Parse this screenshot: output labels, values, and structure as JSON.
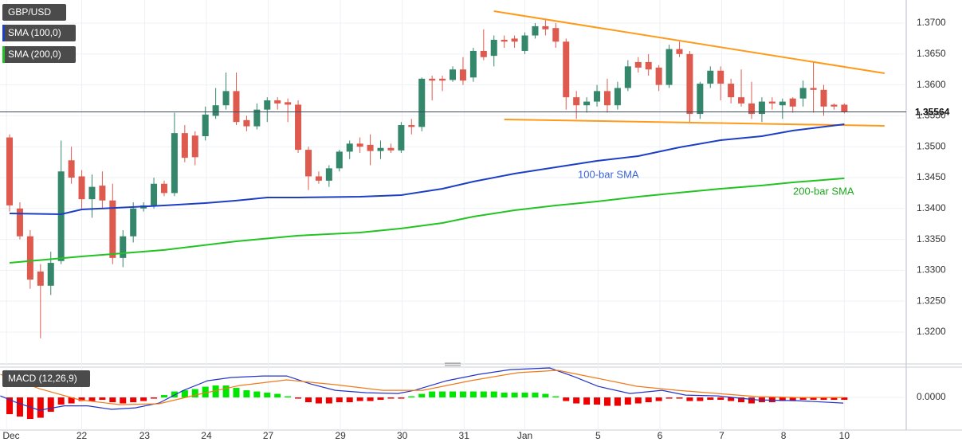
{
  "chart_data": [
    {
      "type": "candlestick",
      "title": "GBP/USD",
      "up_color": "#34876b",
      "down_color": "#df5a4e",
      "open": [
        1.3515,
        1.34,
        1.3355,
        1.3298,
        1.3275,
        1.3315,
        1.3478,
        1.3452,
        1.3415,
        1.3437,
        1.3413,
        1.332,
        1.3355,
        1.34,
        1.3405,
        1.344,
        1.3425,
        1.3522,
        1.3518,
        1.3517,
        1.355,
        1.3567,
        1.359,
        1.3543,
        1.3533,
        1.356,
        1.3575,
        1.3572,
        1.3568,
        1.3495,
        1.3452,
        1.3445,
        1.3465,
        1.3492,
        1.3505,
        1.3503,
        1.3493,
        1.3498,
        1.3494,
        1.3535,
        1.3532,
        1.361,
        1.361,
        1.3608,
        1.3625,
        1.3612,
        1.3655,
        1.3647,
        1.3673,
        1.3675,
        1.3655,
        1.368,
        1.3695,
        1.3692,
        1.367,
        1.358,
        1.3567,
        1.3573,
        1.359,
        1.3567,
        1.3595,
        1.3637,
        1.3637,
        1.3628,
        1.36,
        1.3658,
        1.365,
        1.3553,
        1.3602,
        1.3623,
        1.3602,
        1.358,
        1.357,
        1.3553,
        1.3573,
        1.3567,
        1.3578,
        1.3578,
        1.3595,
        1.3592,
        1.3568,
        1.3568
      ],
      "high": [
        1.352,
        1.341,
        1.3365,
        1.331,
        1.333,
        1.351,
        1.35,
        1.3462,
        1.3455,
        1.346,
        1.344,
        1.3365,
        1.341,
        1.341,
        1.345,
        1.3445,
        1.3555,
        1.3535,
        1.3525,
        1.3565,
        1.3595,
        1.362,
        1.362,
        1.355,
        1.357,
        1.358,
        1.358,
        1.3578,
        1.3575,
        1.35,
        1.346,
        1.347,
        1.3495,
        1.351,
        1.3515,
        1.352,
        1.351,
        1.3505,
        1.354,
        1.3545,
        1.3612,
        1.3615,
        1.3615,
        1.363,
        1.3645,
        1.366,
        1.369,
        1.368,
        1.368,
        1.368,
        1.3685,
        1.37,
        1.3705,
        1.37,
        1.3675,
        1.359,
        1.358,
        1.36,
        1.361,
        1.3605,
        1.364,
        1.3645,
        1.365,
        1.3632,
        1.3665,
        1.367,
        1.3655,
        1.3605,
        1.363,
        1.363,
        1.361,
        1.3625,
        1.3605,
        1.358,
        1.358,
        1.3578,
        1.358,
        1.3607,
        1.3637,
        1.36,
        1.357,
        1.357
      ],
      "low": [
        1.3395,
        1.335,
        1.327,
        1.319,
        1.326,
        1.331,
        1.344,
        1.34,
        1.3385,
        1.34,
        1.331,
        1.3305,
        1.3345,
        1.3395,
        1.34,
        1.342,
        1.342,
        1.3475,
        1.347,
        1.351,
        1.3545,
        1.356,
        1.3535,
        1.3525,
        1.3528,
        1.354,
        1.356,
        1.354,
        1.349,
        1.343,
        1.344,
        1.3435,
        1.346,
        1.348,
        1.349,
        1.347,
        1.348,
        1.349,
        1.349,
        1.352,
        1.3525,
        1.3575,
        1.359,
        1.3605,
        1.36,
        1.3605,
        1.364,
        1.363,
        1.366,
        1.366,
        1.365,
        1.3675,
        1.368,
        1.366,
        1.356,
        1.3545,
        1.3555,
        1.3565,
        1.3555,
        1.356,
        1.359,
        1.362,
        1.3615,
        1.359,
        1.3595,
        1.3645,
        1.354,
        1.3545,
        1.3595,
        1.3575,
        1.357,
        1.3565,
        1.3545,
        1.354,
        1.356,
        1.3545,
        1.3555,
        1.3565,
        1.3555,
        1.355,
        1.356,
        1.3554
      ],
      "close": [
        1.3405,
        1.3355,
        1.3285,
        1.3275,
        1.3312,
        1.346,
        1.345,
        1.3415,
        1.3435,
        1.3413,
        1.332,
        1.3355,
        1.34,
        1.3405,
        1.344,
        1.3425,
        1.3522,
        1.3482,
        1.3483,
        1.3552,
        1.3567,
        1.359,
        1.354,
        1.3533,
        1.356,
        1.3575,
        1.357,
        1.3568,
        1.3495,
        1.3452,
        1.3445,
        1.3465,
        1.3492,
        1.3505,
        1.35,
        1.3493,
        1.3498,
        1.3494,
        1.3535,
        1.3532,
        1.361,
        1.3607,
        1.3607,
        1.3625,
        1.3607,
        1.3655,
        1.3645,
        1.3673,
        1.367,
        1.367,
        1.368,
        1.3695,
        1.369,
        1.367,
        1.358,
        1.3567,
        1.3573,
        1.359,
        1.3567,
        1.3595,
        1.363,
        1.3628,
        1.3625,
        1.36,
        1.3658,
        1.365,
        1.3553,
        1.3602,
        1.3623,
        1.3602,
        1.358,
        1.357,
        1.3553,
        1.3573,
        1.357,
        1.3573,
        1.3565,
        1.3595,
        1.3592,
        1.3565,
        1.3565,
        1.3556
      ],
      "series": [
        {
          "name": "SMA (100,0)",
          "color": "#1d3fc4",
          "x": [
            0,
            5,
            7,
            15,
            19,
            22,
            25,
            28,
            34,
            38,
            42,
            45,
            49,
            53,
            57,
            61,
            65,
            69,
            73,
            76,
            81
          ],
          "values": [
            1.3392,
            1.33907,
            1.33985,
            1.34049,
            1.34088,
            1.34127,
            1.34178,
            1.34178,
            1.34191,
            1.34217,
            1.3432,
            1.34436,
            1.34565,
            1.34668,
            1.34771,
            1.34848,
            1.3499,
            1.35106,
            1.3517,
            1.35261,
            1.35364
          ]
        },
        {
          "name": "SMA (200,0)",
          "color": "#22c322",
          "x": [
            0,
            7,
            15,
            22,
            28,
            34,
            38,
            42,
            45,
            49,
            53,
            57,
            61,
            65,
            69,
            73,
            76,
            81
          ],
          "values": [
            1.33121,
            1.33224,
            1.33328,
            1.33469,
            1.3356,
            1.33611,
            1.33676,
            1.33766,
            1.33869,
            1.33972,
            1.34049,
            1.34114,
            1.34191,
            1.34256,
            1.3432,
            1.34372,
            1.34423,
            1.34488
          ]
        }
      ],
      "trendlines": [
        {
          "color": "#ff9a1a",
          "x": [
            47,
            84.9
          ],
          "values": [
            1.37194,
            1.36188
          ]
        },
        {
          "color": "#ff9a1a",
          "x": [
            48,
            84.9
          ],
          "values": [
            1.35441,
            1.35338
          ]
        }
      ],
      "annotations": [
        {
          "text": "100-bar SMA",
          "color": "#3a63d8"
        },
        {
          "text": "200-bar SMA",
          "color": "#1fa61f"
        }
      ],
      "last_price": 1.35564,
      "xlim": [
        -0.93,
        86.85
      ],
      "ylim": [
        1.3151,
        1.37374
      ],
      "yticks": [
        {
          "value": 1.32,
          "label": "1.3200"
        },
        {
          "value": 1.325,
          "label": "1.3250"
        },
        {
          "value": 1.33,
          "label": "1.3300"
        },
        {
          "value": 1.335,
          "label": "1.3350"
        },
        {
          "value": 1.34,
          "label": "1.3400"
        },
        {
          "value": 1.345,
          "label": "1.3450"
        },
        {
          "value": 1.35,
          "label": "1.3500"
        },
        {
          "value": 1.355,
          "label": "1.3550"
        },
        {
          "value": 1.36,
          "label": "1.3600"
        },
        {
          "value": 1.365,
          "label": "1.3650"
        },
        {
          "value": 1.37,
          "label": "1.3700"
        }
      ],
      "xticks": [
        {
          "value": -0.3,
          "label": "Dec"
        },
        {
          "value": 7,
          "label": "22"
        },
        {
          "value": 13.1,
          "label": "23"
        },
        {
          "value": 19.1,
          "label": "24"
        },
        {
          "value": 25.1,
          "label": "27"
        },
        {
          "value": 32.1,
          "label": "29"
        },
        {
          "value": 38.1,
          "label": "30"
        },
        {
          "value": 44.1,
          "label": "31"
        },
        {
          "value": 50,
          "label": "Jan"
        },
        {
          "value": 57.1,
          "label": "5"
        },
        {
          "value": 63.1,
          "label": "6"
        },
        {
          "value": 69.1,
          "label": "7"
        },
        {
          "value": 75.1,
          "label": "8"
        },
        {
          "value": 81,
          "label": "10"
        }
      ],
      "grid": true
    },
    {
      "type": "macd",
      "title": "MACD (12,26,9)",
      "up_color": "#00e600",
      "down_color": "#ee0000",
      "histogram": [
        -0.0014,
        -0.0016,
        -0.0018,
        -0.0017,
        -0.0012,
        -0.0006,
        -0.0005,
        -0.0003,
        -0.0003,
        -0.0002,
        -0.0004,
        -0.0005,
        -0.0004,
        -0.0003,
        -0.0001,
        0.0002,
        0.0005,
        0.0006,
        0.0007,
        0.0009,
        0.001,
        0.001,
        0.0008,
        0.0006,
        0.0005,
        0.0004,
        0.0003,
        0.0001,
        -0.0001,
        -0.0004,
        -0.0005,
        -0.0005,
        -0.0004,
        -0.0004,
        -0.0003,
        -0.0003,
        -0.0002,
        -0.0001,
        -0.0001,
        0.0001,
        0.0003,
        0.0005,
        0.0005,
        0.0005,
        0.0005,
        0.0005,
        0.0005,
        0.0005,
        0.0004,
        0.0004,
        0.0004,
        0.0004,
        0.0003,
        0.0001,
        -0.0003,
        -0.0005,
        -0.0006,
        -0.0006,
        -0.0007,
        -0.0007,
        -0.0006,
        -0.0005,
        -0.0004,
        -0.0003,
        -0.0001,
        -0.0001,
        -0.0003,
        -0.0003,
        -0.0002,
        -0.0002,
        -0.0003,
        -0.0004,
        -0.0005,
        -0.0004,
        -0.0004,
        -0.0003,
        -0.0003,
        -0.0002,
        -0.0002,
        -0.0002,
        -0.0002,
        -0.0002
      ],
      "series": [
        {
          "color": "#2335c8",
          "x": [
            -0.9,
            0.6,
            2.9,
            5.3,
            7.6,
            9.9,
            12.2,
            14.5,
            16.9,
            19.2,
            21.5,
            24.6,
            26.9,
            29.2,
            31.6,
            34.6,
            37.7,
            39.3,
            42.4,
            45.5,
            48.6,
            52.4,
            54.8,
            57.1,
            60.2,
            63.3,
            65.6,
            68.7,
            72.5,
            76.4,
            80.9
          ],
          "values": [
            0.00013,
            -0.0004,
            -0.00107,
            -0.0007,
            -0.0007,
            -0.001,
            -0.00087,
            -0.00047,
            0.0006,
            0.0014,
            0.00167,
            0.0018,
            0.0018,
            0.00113,
            0.0006,
            0.0004,
            0.00033,
            0.0006,
            0.0014,
            0.00193,
            0.00233,
            0.00247,
            0.00173,
            0.00093,
            0.00033,
            0.0006,
            0.0002,
            0.00013,
            -0.0002,
            -0.00027,
            -0.00047
          ]
        },
        {
          "color": "#f07a1a",
          "x": [
            -0.9,
            2.9,
            6.8,
            10.7,
            14.5,
            18.4,
            22.3,
            26.9,
            31.6,
            36.2,
            40.1,
            44.7,
            49.3,
            53.2,
            57.1,
            60.9,
            64.8,
            68.7,
            72.5,
            76.4,
            80.9
          ],
          "values": [
            0.00193,
            0.00073,
            -0.0002,
            -0.0006,
            -0.00053,
            0.00027,
            0.001,
            0.00147,
            0.00107,
            0.0006,
            0.0006,
            0.0014,
            0.00207,
            0.00227,
            0.0016,
            0.00093,
            0.0006,
            0.00033,
            7e-05,
            0,
            0
          ]
        }
      ],
      "xlim": [
        -0.93,
        86.85
      ],
      "ylim": [
        -0.00273,
        0.00247
      ],
      "yticks": [
        {
          "value": 0,
          "label": "0.0000"
        }
      ]
    }
  ]
}
